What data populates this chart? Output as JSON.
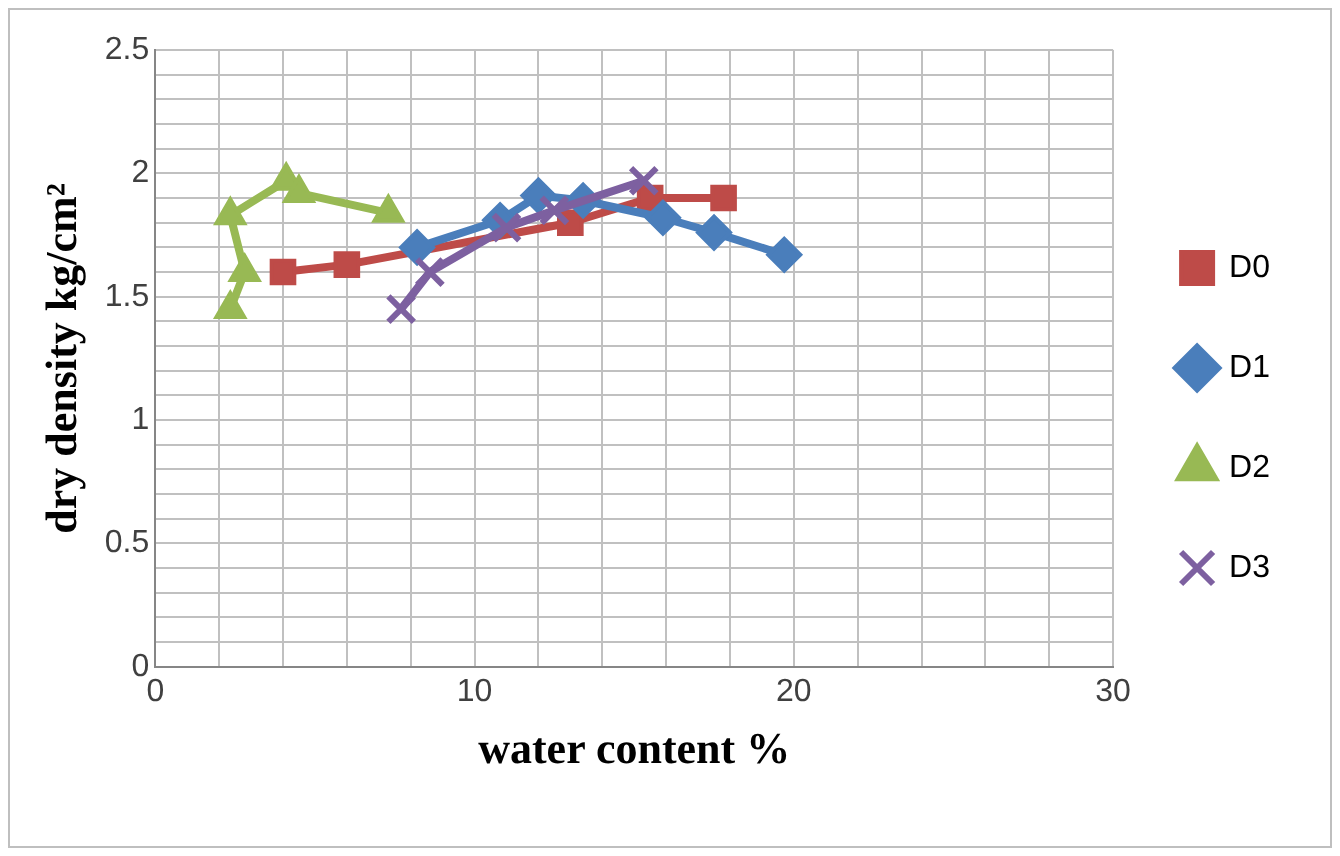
{
  "chart_data": {
    "type": "line",
    "xlabel": "water content %",
    "ylabel": "dry density kg/cm²",
    "xlim": [
      0,
      30
    ],
    "ylim": [
      0,
      2.5
    ],
    "xticks": [
      0,
      {
        "value": 2,
        "label": null
      },
      {
        "value": 4,
        "label": null
      },
      {
        "value": 6,
        "label": null
      },
      {
        "value": 8,
        "label": null
      },
      10,
      {
        "value": 12,
        "label": null
      },
      {
        "value": 14,
        "label": null
      },
      {
        "value": 16,
        "label": null
      },
      {
        "value": 18,
        "label": null
      },
      20,
      {
        "value": 22,
        "label": null
      },
      {
        "value": 24,
        "label": null
      },
      {
        "value": 26,
        "label": null
      },
      {
        "value": 28,
        "label": null
      },
      30
    ],
    "yticks": [
      0,
      {
        "value": 0.1,
        "label": null
      },
      {
        "value": 0.2,
        "label": null
      },
      {
        "value": 0.3,
        "label": null
      },
      {
        "value": 0.4,
        "label": null
      },
      0.5,
      {
        "value": 0.6,
        "label": null
      },
      {
        "value": 0.7,
        "label": null
      },
      {
        "value": 0.8,
        "label": null
      },
      {
        "value": 0.9,
        "label": null
      },
      1,
      {
        "value": 1.1,
        "label": null
      },
      {
        "value": 1.2,
        "label": null
      },
      {
        "value": 1.3,
        "label": null
      },
      {
        "value": 1.4,
        "label": null
      },
      1.5,
      {
        "value": 1.6,
        "label": null
      },
      {
        "value": 1.7,
        "label": null
      },
      {
        "value": 1.8,
        "label": null
      },
      {
        "value": 1.9,
        "label": null
      },
      2,
      {
        "value": 2.1,
        "label": null
      },
      {
        "value": 2.2,
        "label": null
      },
      {
        "value": 2.3,
        "label": null
      },
      {
        "value": 2.4,
        "label": null
      },
      2.5
    ],
    "grid": true,
    "legend": "right",
    "series": [
      {
        "name": "D0",
        "color": "#be4b48",
        "marker": "square",
        "x": [
          4,
          6,
          13,
          15.5,
          17.8
        ],
        "values": [
          1.6,
          1.63,
          1.8,
          1.9,
          1.9
        ]
      },
      {
        "name": "D1",
        "color": "#4a7ebb",
        "marker": "diamond",
        "x": [
          8.2,
          10.8,
          12,
          13.4,
          15.9,
          17.5,
          19.7
        ],
        "values": [
          1.7,
          1.81,
          1.91,
          1.89,
          1.82,
          1.76,
          1.67
        ]
      },
      {
        "name": "D2",
        "color": "#98b954",
        "marker": "triangle",
        "x": [
          2.35,
          2.8,
          2.35,
          4.1,
          4.5,
          7.3
        ],
        "values": [
          1.45,
          1.6,
          1.83,
          1.97,
          1.92,
          1.84
        ]
      },
      {
        "name": "D3",
        "color": "#7d60a0",
        "marker": "cross",
        "x": [
          7.7,
          8.6,
          11,
          12.5,
          15.3
        ],
        "values": [
          1.45,
          1.6,
          1.78,
          1.85,
          1.97
        ]
      }
    ]
  }
}
